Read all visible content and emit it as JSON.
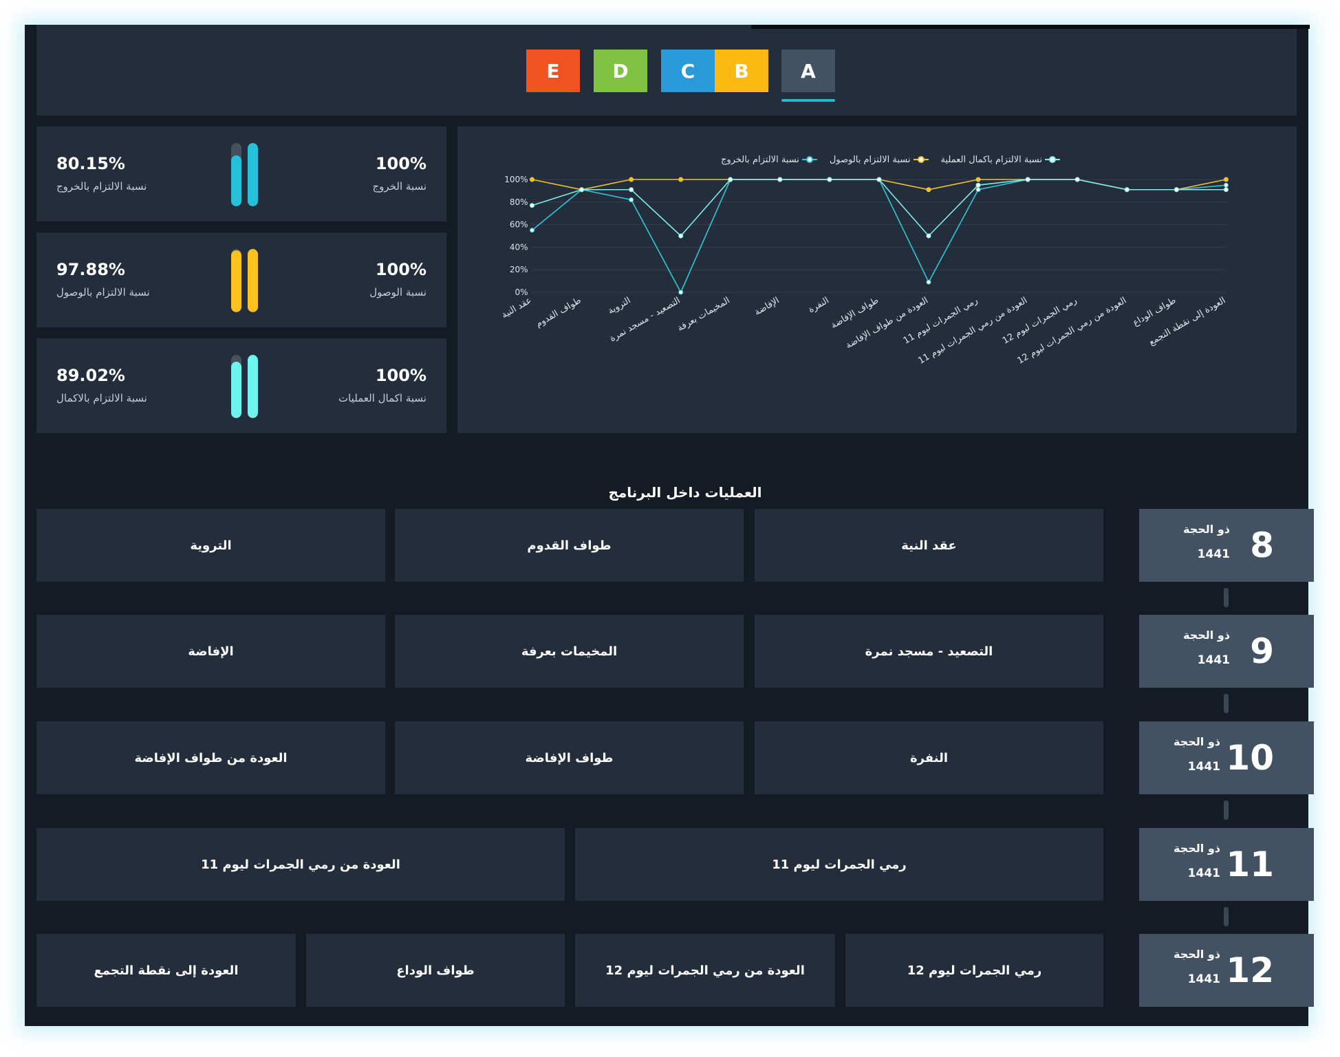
{
  "tabs": [
    {
      "label": "E",
      "color": "#f05423"
    },
    {
      "label": "D",
      "color": "#80c342"
    },
    {
      "label": "C",
      "color": "#2b9ad8"
    },
    {
      "label": "B",
      "color": "#fbb912"
    },
    {
      "label": "A",
      "color": "#435263",
      "active": true
    }
  ],
  "stats": [
    {
      "compliance_value": "80.15%",
      "compliance_label": "نسبة الالتزام بالخروج",
      "rate_value": "100%",
      "rate_label": "نسبة الخروج",
      "color": "#27c0da",
      "compliance_fraction": 0.8015,
      "rate_fraction": 1.0
    },
    {
      "compliance_value": "97.88%",
      "compliance_label": "نسبة الالتزام بالوصول",
      "rate_value": "100%",
      "rate_label": "نسبة الوصول",
      "color": "#fdc21f",
      "compliance_fraction": 0.9788,
      "rate_fraction": 1.0
    },
    {
      "compliance_value": "89.02%",
      "compliance_label": "نسبة الالتزام بالاكمال",
      "rate_value": "100%",
      "rate_label": "نسبة اكمال العمليات",
      "color": "#6ef5ef",
      "compliance_fraction": 0.8902,
      "rate_fraction": 1.0
    }
  ],
  "chart_data": {
    "type": "line",
    "categories": [
      "عقد النية",
      "طواف القدوم",
      "التروية",
      "التصعيد - مسجد نمرة",
      "المخيمات بعرفة",
      "الإفاضة",
      "النفرة",
      "طواف الإفاضة",
      "العودة من طواف الإفاضة",
      "رمي الجمرات ليوم 11",
      "العودة من رمي الجمرات ليوم 11",
      "رمي الجمرات ليوم 12",
      "العودة من رمي الجمرات ليوم 12",
      "طواف الوداع",
      "العودة إلى نقطة التجمع"
    ],
    "series": [
      {
        "name": "نسبة الالتزام بالخروج",
        "color": "#2ec8da",
        "values": [
          55,
          91,
          82,
          0,
          100,
          100,
          100,
          100,
          9,
          91,
          100,
          100,
          91,
          91,
          95
        ]
      },
      {
        "name": "نسبة الالتزام بالوصول",
        "color": "#f3c32c",
        "values": [
          100,
          91,
          100,
          100,
          100,
          100,
          100,
          100,
          91,
          100,
          100,
          100,
          91,
          91,
          100
        ]
      },
      {
        "name": "نسبة الالتزام باكمال العملية",
        "color": "#7eeff0",
        "values": [
          77,
          91,
          91,
          50,
          100,
          100,
          100,
          100,
          50,
          95,
          100,
          100,
          91,
          91,
          91
        ]
      }
    ],
    "yticks": [
      "0%",
      "20%",
      "40%",
      "60%",
      "80%",
      "100%"
    ],
    "ylim": [
      0,
      100
    ],
    "grid": true,
    "legend": "top"
  },
  "section_title": "العمليات داخل البرنامج",
  "days": [
    {
      "num": "8",
      "month": "ذو الحجة",
      "year": "1441",
      "ops": [
        "عقد النية",
        "طواف القدوم",
        "التروية"
      ]
    },
    {
      "num": "9",
      "month": "ذو الحجة",
      "year": "1441",
      "ops": [
        "التصعيد - مسجد نمرة",
        "المخيمات بعرفة",
        "الإفاضة"
      ]
    },
    {
      "num": "10",
      "month": "ذو الحجة",
      "year": "1441",
      "ops": [
        "النفرة",
        "طواف الإفاضة",
        "العودة من طواف الإفاضة"
      ]
    },
    {
      "num": "11",
      "month": "ذو الحجة",
      "year": "1441",
      "ops": [
        "رمي الجمرات ليوم 11",
        "العودة من رمي الجمرات ليوم 11"
      ]
    },
    {
      "num": "12",
      "month": "ذو الحجة",
      "year": "1441",
      "ops": [
        "رمي الجمرات ليوم 12",
        "العودة من رمي الجمرات ليوم 12",
        "طواف الوداع",
        "العودة إلى نقطة التجمع"
      ]
    }
  ]
}
